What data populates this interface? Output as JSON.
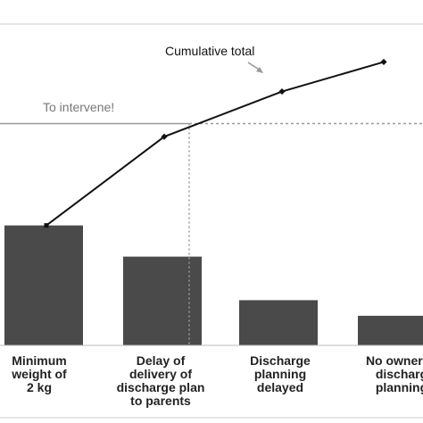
{
  "chart_data": {
    "type": "bar",
    "categories": [
      "Minimum\nweight of\n2 kg",
      "Delay of\ndelivery of\ndischarge plan\nto parents",
      "Discharge\nplanning\ndelayed",
      "No ownersh\ndischarg\nplanning"
    ],
    "values": [
      146,
      108,
      55,
      36
    ],
    "cumulative": [
      146,
      254,
      309,
      345
    ],
    "ylim": [
      0,
      390
    ],
    "title": "",
    "xlabel": "",
    "ylabel": "",
    "annotations": {
      "cumulative_label": "Cumulative total",
      "threshold_label": "To intervene!",
      "threshold_value": 270
    },
    "colors": {
      "bar": "#4a4a4a",
      "line": "#111111",
      "threshold": "#9a9a9a",
      "frame": "#cccccc"
    },
    "grid": false,
    "legend": "none"
  }
}
